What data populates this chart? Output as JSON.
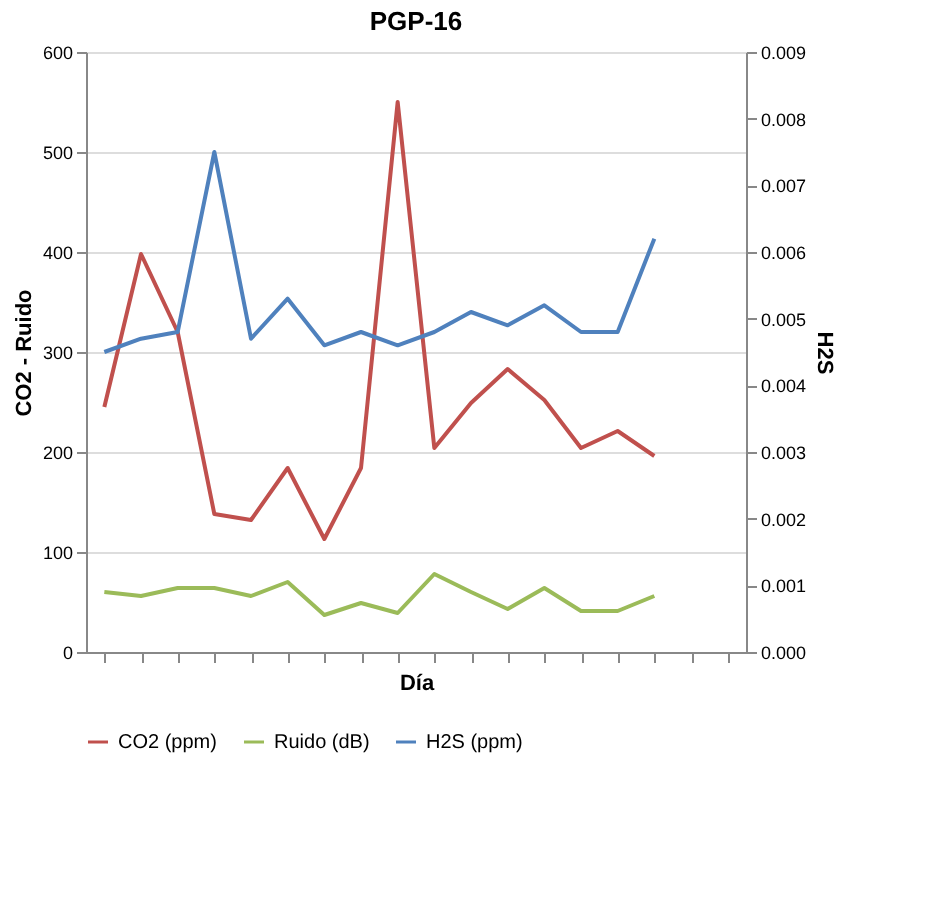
{
  "chart_data": {
    "type": "line",
    "title": "PGP-16",
    "xlabel": "Día",
    "ylabel": "CO2 - Ruido",
    "y2label": "H2S",
    "categories": [
      null,
      null,
      null,
      null,
      null,
      null,
      null,
      null,
      null,
      null,
      null,
      null,
      null,
      null,
      null,
      null,
      null,
      null
    ],
    "series": [
      {
        "name": "CO2 (ppm)",
        "color": "#c0504d",
        "values": [
          245,
          398,
          320,
          138,
          132,
          184,
          113,
          184,
          550,
          204,
          249,
          283,
          252,
          204,
          221,
          196,
          null,
          null
        ]
      },
      {
        "name": "Ruido (dB)",
        "color": "#9bbb59",
        "values": [
          60,
          56,
          64,
          64,
          56,
          70,
          37,
          49,
          39,
          78,
          60,
          43,
          64,
          41,
          41,
          56,
          null,
          null
        ]
      },
      {
        "name": "H2S (ppm)",
        "color": "#4f81bd",
        "axis": "y2",
        "values": [
          0.0045,
          0.0047,
          0.0048,
          0.0075,
          0.0047,
          0.0053,
          0.0046,
          0.0048,
          0.0046,
          0.0048,
          0.0051,
          0.0049,
          0.0052,
          0.0048,
          0.0048,
          0.0062,
          null,
          null
        ]
      }
    ],
    "ylim": [
      0,
      600
    ],
    "yticks": [
      0,
      100,
      200,
      300,
      400,
      500,
      600
    ],
    "y2lim": [
      0,
      0.009
    ],
    "y2ticks": [
      {
        "value": 0,
        "label": "0.000"
      },
      {
        "value": 0.001,
        "label": "0.001"
      },
      {
        "value": 0.002,
        "label": "0.002"
      },
      {
        "value": 0.003,
        "label": "0.003"
      },
      {
        "value": 0.004,
        "label": "0.004"
      },
      {
        "value": 0.005,
        "label": "0.005"
      },
      {
        "value": 0.006,
        "label": "0.006"
      },
      {
        "value": 0.007,
        "label": "0.007"
      },
      {
        "value": 0.008,
        "label": "0.008"
      },
      {
        "value": 0.009,
        "label": "0.009"
      }
    ],
    "grid": "y",
    "legend": "bottom",
    "marker": "none",
    "line_style": "solid",
    "tick_labels": "y"
  }
}
